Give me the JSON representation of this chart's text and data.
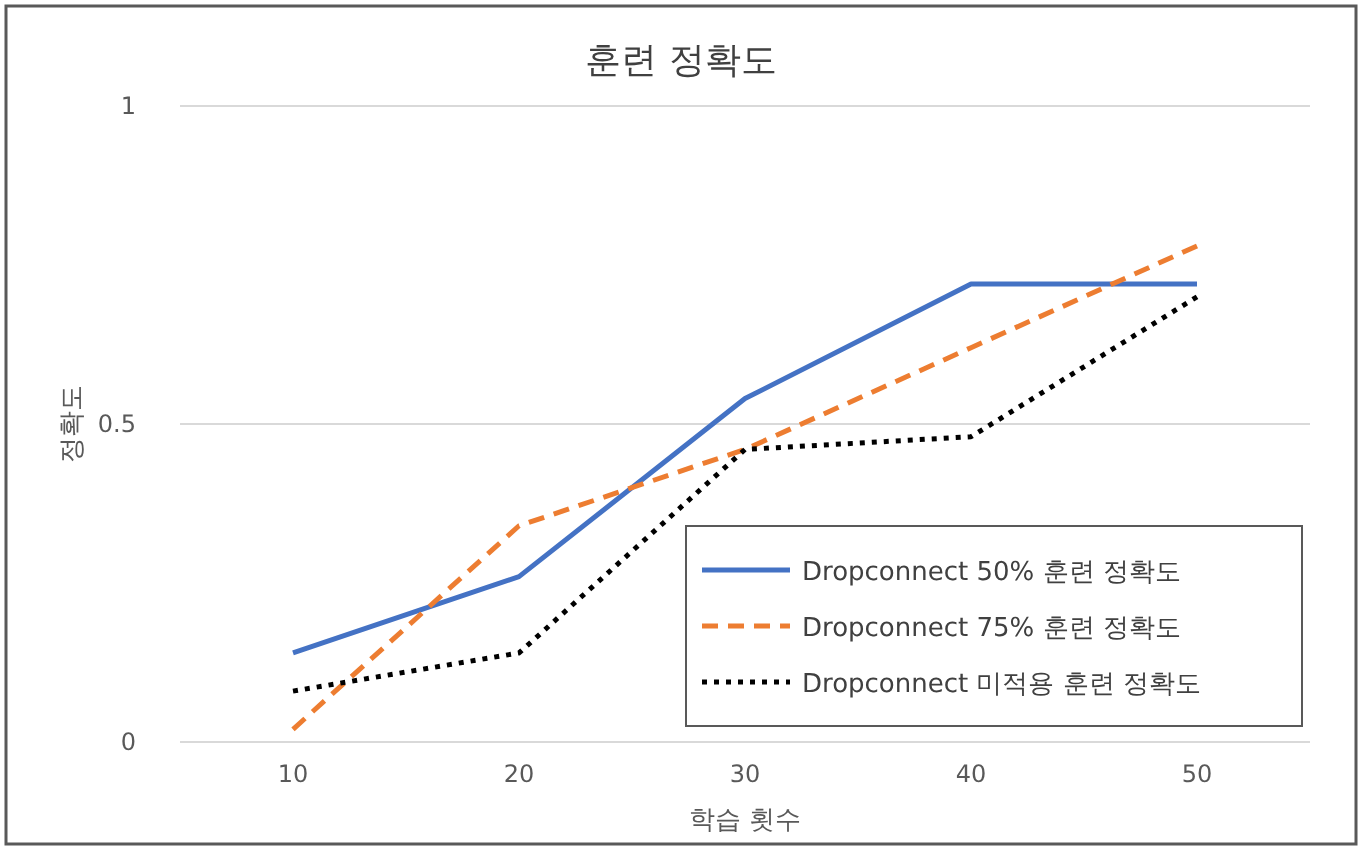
{
  "chart_data": {
    "type": "line",
    "title": "훈련 정확도",
    "xlabel": "학습 횟수",
    "ylabel": "정확도",
    "categories": [
      "10",
      "20",
      "30",
      "40",
      "50"
    ],
    "ylim": [
      0,
      1
    ],
    "yticks": [
      0,
      0.5,
      1
    ],
    "grid": "y",
    "legend": "bottom right",
    "series": [
      {
        "name": "Dropconnect 50% 훈련 정확도",
        "color": "#4472c4",
        "line_style": "solid",
        "values": [
          0.14,
          0.26,
          0.54,
          0.72,
          0.72
        ]
      },
      {
        "name": "Dropconnect 75% 훈련 정확도",
        "color": "#ed7d31",
        "line_style": "dashed",
        "values": [
          0.02,
          0.34,
          0.46,
          0.62,
          0.78
        ]
      },
      {
        "name": "Dropconnect 미적용 훈련 정확도",
        "color": "#000000",
        "line_style": "dotted",
        "values": [
          0.08,
          0.14,
          0.46,
          0.48,
          0.7
        ]
      }
    ]
  }
}
